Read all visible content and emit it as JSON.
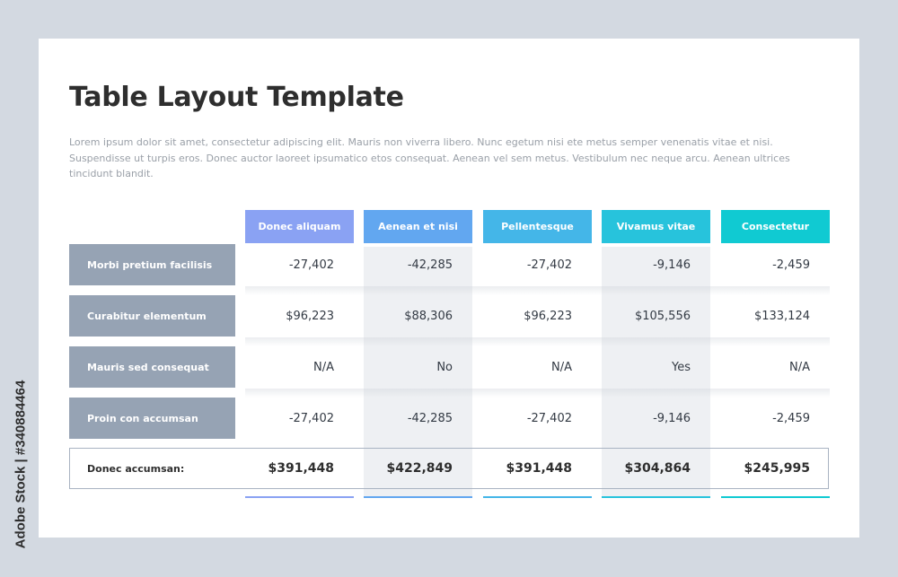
{
  "title": "Table Layout Template",
  "description": "Lorem ipsum dolor sit amet, consectetur adipiscing elit. Mauris non viverra libero. Nunc egetum nisi ete metus semper venenatis vitae et nisi. Suspendisse ut turpis eros. Donec auctor laoreet ipsumatico etos consequat. Aenean vel sem metus. Vestibulum nec neque arcu. Aenean ultrices tincidunt blandit.",
  "columns": [
    {
      "label": "Donec aliquam",
      "color": "#8aa2f3"
    },
    {
      "label": "Aenean et nisi",
      "color": "#62a7f0"
    },
    {
      "label": "Pellentesque",
      "color": "#44b6e8"
    },
    {
      "label": "Vivamus vitae",
      "color": "#27c3dc"
    },
    {
      "label": "Consectetur",
      "color": "#10cad2"
    }
  ],
  "rows": [
    {
      "label": "Morbi pretium facilisis",
      "values": [
        "-27,402",
        "-42,285",
        "-27,402",
        "-9,146",
        "-2,459"
      ]
    },
    {
      "label": "Curabitur elementum",
      "values": [
        "$96,223",
        "$88,306",
        "$96,223",
        "$105,556",
        "$133,124"
      ]
    },
    {
      "label": "Mauris sed consequat",
      "values": [
        "N/A",
        "No",
        "N/A",
        "Yes",
        "N/A"
      ]
    },
    {
      "label": "Proin con accumsan",
      "values": [
        "-27,402",
        "-42,285",
        "-27,402",
        "-9,146",
        "-2,459"
      ]
    }
  ],
  "totals": {
    "label": "Donec accumsan:",
    "values": [
      "$391,448",
      "$422,849",
      "$391,448",
      "$304,864",
      "$245,995"
    ]
  },
  "watermark": "Adobe Stock | #340884464"
}
